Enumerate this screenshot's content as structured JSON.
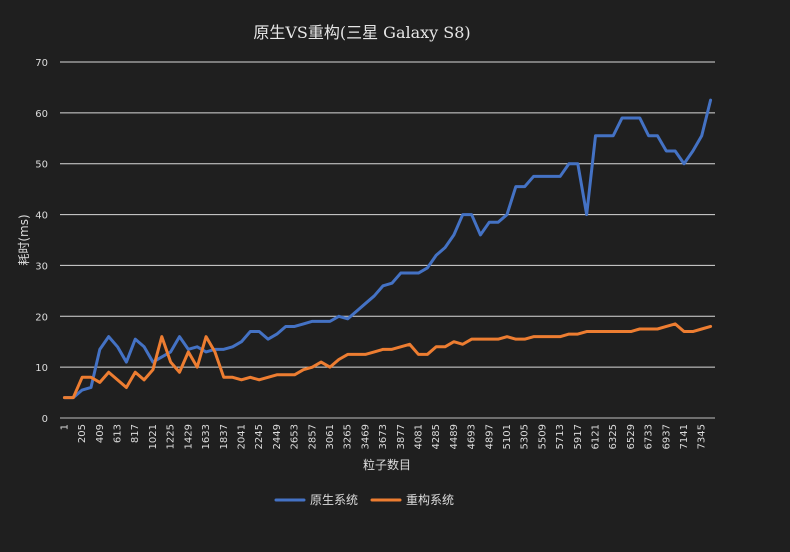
{
  "chart_data": {
    "type": "line",
    "title": "原生VS重构(三星 Galaxy S8)",
    "xlabel": "粒子数目",
    "ylabel": "耗时(ms)",
    "ylim": [
      0,
      70
    ],
    "yticks": [
      "0",
      "10",
      "20",
      "30",
      "40",
      "50",
      "60",
      "70"
    ],
    "xtick_labels": [
      "1",
      "205",
      "409",
      "613",
      "817",
      "1021",
      "1225",
      "1429",
      "1633",
      "1837",
      "2041",
      "2245",
      "2449",
      "2653",
      "2857",
      "3061",
      "3265",
      "3469",
      "3673",
      "3877",
      "4081",
      "4285",
      "4489",
      "4693",
      "4897",
      "5101",
      "5305",
      "5509",
      "5713",
      "5917",
      "6121",
      "6325",
      "6529",
      "6733",
      "6937",
      "7141",
      "7345"
    ],
    "grid": "horizontal",
    "legend_position": "bottom",
    "series": [
      {
        "name": "原生系统",
        "color": "#4472c4",
        "values": [
          4,
          4,
          5.5,
          6,
          13.5,
          16,
          14,
          11,
          15.5,
          14,
          11,
          12,
          13,
          16,
          13.5,
          14,
          13,
          13.5,
          13.5,
          14,
          15,
          17,
          17,
          15.5,
          16.5,
          18,
          18,
          18.5,
          19,
          19,
          19,
          20,
          19.5,
          21,
          22.5,
          24,
          26,
          26.5,
          28.5,
          28.5,
          28.5,
          29.5,
          32,
          33.5,
          36,
          40,
          40,
          36,
          38.5,
          38.5,
          40,
          45.5,
          45.5,
          47.5,
          47.5,
          47.5,
          47.5,
          50,
          50,
          40,
          55.5,
          55.5,
          55.5,
          59,
          59,
          59,
          55.5,
          55.5,
          52.5,
          52.5,
          50,
          52.5,
          55.5,
          62.5
        ]
      },
      {
        "name": "重构系统",
        "color": "#ed7d31",
        "values": [
          4,
          4,
          8,
          8,
          7,
          9,
          7.5,
          6,
          9,
          7.5,
          9.5,
          16,
          11,
          9,
          13,
          10,
          16,
          13,
          8,
          8,
          7.5,
          8,
          7.5,
          8,
          8.5,
          8.5,
          8.5,
          9.5,
          10,
          11,
          10,
          11.5,
          12.5,
          12.5,
          12.5,
          13,
          13.5,
          13.5,
          14,
          14.5,
          12.5,
          12.5,
          14,
          14,
          15,
          14.5,
          15.5,
          15.5,
          15.5,
          15.5,
          16,
          15.5,
          15.5,
          16,
          16,
          16,
          16,
          16.5,
          16.5,
          17,
          17,
          17,
          17,
          17,
          17,
          17.5,
          17.5,
          17.5,
          18,
          18.5,
          17,
          17,
          17.5,
          18
        ]
      }
    ]
  }
}
